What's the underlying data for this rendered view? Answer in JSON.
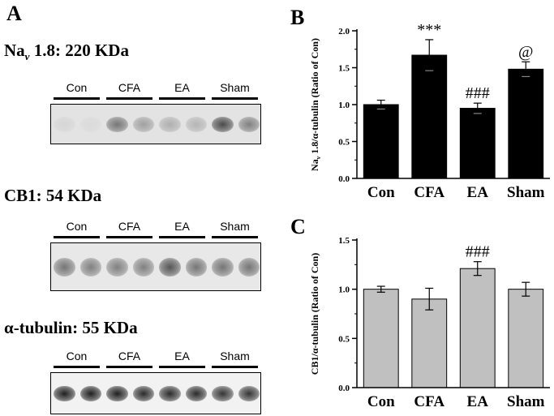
{
  "panelA": {
    "letter": "A",
    "blots": [
      {
        "title_main": "Na",
        "title_sub": "v",
        "title_rest": " 1.8: 220 KDa",
        "lanes": [
          "Con",
          "CFA",
          "EA",
          "Sham"
        ],
        "bg": "#e3e3e3",
        "band_intensity": [
          0.1,
          0.08,
          0.55,
          0.35,
          0.28,
          0.25,
          0.75,
          0.5
        ]
      },
      {
        "title_main": "CB1: 54 KDa",
        "lanes": [
          "Con",
          "CFA",
          "EA",
          "Sham"
        ],
        "bg": "#e8e8e8",
        "band_intensity": [
          0.55,
          0.5,
          0.5,
          0.5,
          0.7,
          0.55,
          0.55,
          0.55
        ]
      },
      {
        "title_main": "α-tubulin: 55 KDa",
        "lanes": [
          "Con",
          "CFA",
          "EA",
          "Sham"
        ],
        "bg": "#f2f2f2",
        "band_intensity": [
          0.95,
          0.95,
          0.95,
          0.9,
          0.9,
          0.9,
          0.85,
          0.85
        ]
      }
    ]
  },
  "chart_data": [
    {
      "panel": "B",
      "type": "bar",
      "categories": [
        "Con",
        "CFA",
        "EA",
        "Sham"
      ],
      "values": [
        1.0,
        1.67,
        0.95,
        1.48
      ],
      "errors": [
        0.06,
        0.21,
        0.07,
        0.1
      ],
      "annotations": [
        "",
        "***",
        "###",
        "@"
      ],
      "ylabel_parts": [
        "Na",
        "v",
        " 1.8/α-tubulin (Ratio of Con)"
      ],
      "ylim": [
        0,
        2.0
      ],
      "yticks": [
        "0.0",
        "0.5",
        "1.0",
        "1.5",
        "2.0"
      ],
      "bar_color": "#000000"
    },
    {
      "panel": "C",
      "type": "bar",
      "categories": [
        "Con",
        "CFA",
        "EA",
        "Sham"
      ],
      "values": [
        1.0,
        0.9,
        1.21,
        1.0
      ],
      "errors": [
        0.03,
        0.11,
        0.07,
        0.07
      ],
      "annotations": [
        "",
        "",
        "###",
        ""
      ],
      "ylabel_parts": [
        "CB1/α-tubulin (Ratio of Con)"
      ],
      "ylim": [
        0,
        1.5
      ],
      "yticks": [
        "0.0",
        "0.5",
        "1.0",
        "1.5"
      ],
      "bar_color": "#c0c0c0"
    }
  ]
}
